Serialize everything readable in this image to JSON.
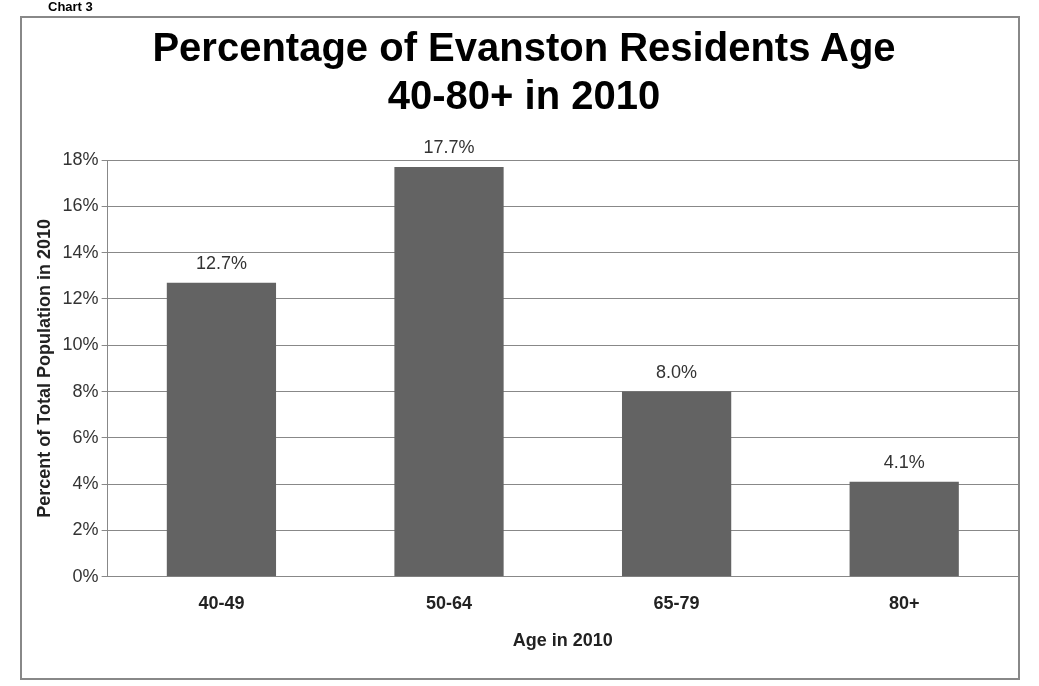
{
  "chart_data": {
    "type": "bar",
    "title": [
      "Percentage of Evanston Residents Age",
      "40-80+ in 2010"
    ],
    "xlabel": "Age in 2010",
    "ylabel": "Percent of Total Population in 2010",
    "categories": [
      "40-49",
      "50-64",
      "65-79",
      "80+"
    ],
    "values": [
      12.7,
      17.7,
      8.0,
      4.1
    ],
    "value_labels": [
      "12.7%",
      "17.7%",
      "8.0%",
      "4.1%"
    ],
    "color": "#636363",
    "ylim": [
      0,
      18
    ],
    "yticks": [
      {
        "value": 0,
        "label": "0%"
      },
      {
        "value": 2,
        "label": "2%"
      },
      {
        "value": 4,
        "label": "4%"
      },
      {
        "value": 6,
        "label": "6%"
      },
      {
        "value": 8,
        "label": "8%"
      },
      {
        "value": 10,
        "label": "10%"
      },
      {
        "value": 12,
        "label": "12%"
      },
      {
        "value": 14,
        "label": "14%"
      },
      {
        "value": 16,
        "label": "16%"
      },
      {
        "value": 18,
        "label": "18%"
      }
    ],
    "grid": "y",
    "legend": false,
    "annotations": [
      "Chart 3"
    ]
  }
}
